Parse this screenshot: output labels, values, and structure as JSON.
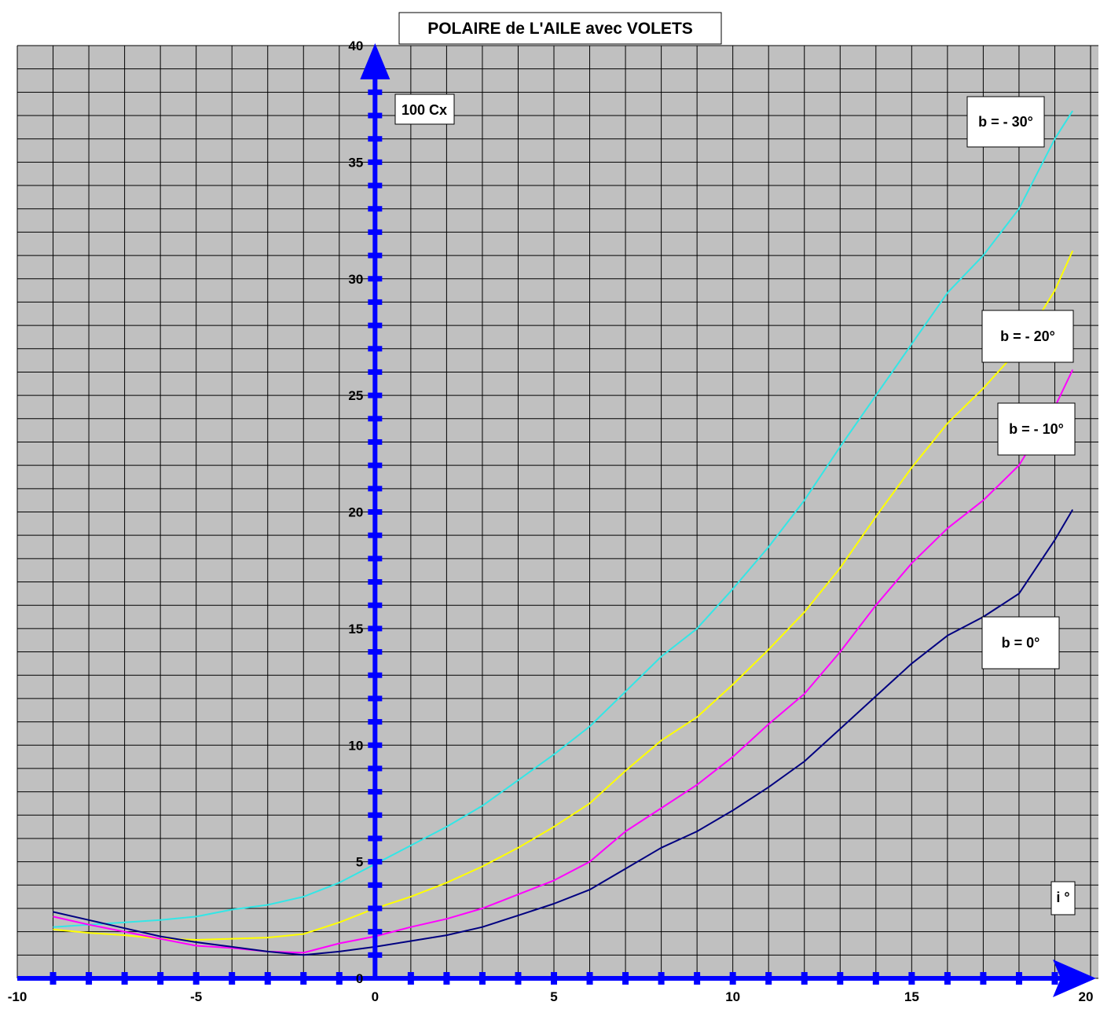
{
  "chart_data": {
    "type": "line",
    "title": "POLAIRE de L'AILE avec VOLETS",
    "ylabel": "100 Cx",
    "xlabel": "i °",
    "xlim": [
      -10,
      20
    ],
    "ylim": [
      0,
      40
    ],
    "x_ticks": [
      "-10",
      "-5",
      "0",
      "5",
      "10",
      "15",
      "20"
    ],
    "y_ticks": [
      "0",
      "5",
      "10",
      "15",
      "20",
      "25",
      "30",
      "35",
      "40"
    ],
    "grid": true,
    "background_color": "#c0c0c0",
    "axis_color": "#0000ff",
    "series": [
      {
        "name": "b = - 30°",
        "color": "#33e6e6",
        "points": [
          [
            -9,
            2.2
          ],
          [
            -8,
            2.3
          ],
          [
            -7,
            2.4
          ],
          [
            -6,
            2.5
          ],
          [
            -5,
            2.65
          ],
          [
            -4,
            2.95
          ],
          [
            -3,
            3.15
          ],
          [
            -2,
            3.5
          ],
          [
            -1,
            4.1
          ],
          [
            0,
            4.9
          ],
          [
            1,
            5.7
          ],
          [
            2,
            6.5
          ],
          [
            3,
            7.4
          ],
          [
            4,
            8.5
          ],
          [
            5,
            9.6
          ],
          [
            6,
            10.8
          ],
          [
            7,
            12.3
          ],
          [
            8,
            13.8
          ],
          [
            9,
            15.0
          ],
          [
            10,
            16.7
          ],
          [
            11,
            18.5
          ],
          [
            12,
            20.5
          ],
          [
            13,
            22.8
          ],
          [
            14,
            25.0
          ],
          [
            15,
            27.2
          ],
          [
            16,
            29.4
          ],
          [
            17,
            31.0
          ],
          [
            18,
            33.0
          ],
          [
            19,
            36.0
          ],
          [
            19.5,
            37.2
          ]
        ]
      },
      {
        "name": "b = - 20°",
        "color": "#ffff00",
        "points": [
          [
            -9,
            2.1
          ],
          [
            -8,
            1.95
          ],
          [
            -7,
            1.85
          ],
          [
            -6,
            1.7
          ],
          [
            -5,
            1.65
          ],
          [
            -4,
            1.7
          ],
          [
            -3,
            1.75
          ],
          [
            -2,
            1.9
          ],
          [
            -1,
            2.4
          ],
          [
            0,
            3.0
          ],
          [
            1,
            3.5
          ],
          [
            2,
            4.1
          ],
          [
            3,
            4.8
          ],
          [
            4,
            5.6
          ],
          [
            5,
            6.5
          ],
          [
            6,
            7.5
          ],
          [
            7,
            8.9
          ],
          [
            8,
            10.2
          ],
          [
            9,
            11.2
          ],
          [
            10,
            12.6
          ],
          [
            11,
            14.1
          ],
          [
            12,
            15.7
          ],
          [
            13,
            17.6
          ],
          [
            14,
            19.8
          ],
          [
            15,
            21.9
          ],
          [
            16,
            23.8
          ],
          [
            17,
            25.3
          ],
          [
            18,
            27.0
          ],
          [
            19,
            29.5
          ],
          [
            19.5,
            31.2
          ]
        ]
      },
      {
        "name": "b = - 10°",
        "color": "#ff00ff",
        "points": [
          [
            -9,
            2.65
          ],
          [
            -8,
            2.3
          ],
          [
            -7,
            2.0
          ],
          [
            -6,
            1.7
          ],
          [
            -5,
            1.4
          ],
          [
            -4,
            1.3
          ],
          [
            -3,
            1.15
          ],
          [
            -2,
            1.1
          ],
          [
            -1,
            1.5
          ],
          [
            0,
            1.8
          ],
          [
            1,
            2.2
          ],
          [
            2,
            2.55
          ],
          [
            3,
            3.0
          ],
          [
            4,
            3.6
          ],
          [
            5,
            4.2
          ],
          [
            6,
            5.0
          ],
          [
            7,
            6.3
          ],
          [
            8,
            7.3
          ],
          [
            9,
            8.3
          ],
          [
            10,
            9.5
          ],
          [
            11,
            10.9
          ],
          [
            12,
            12.2
          ],
          [
            13,
            14.0
          ],
          [
            14,
            16.0
          ],
          [
            15,
            17.8
          ],
          [
            16,
            19.3
          ],
          [
            17,
            20.5
          ],
          [
            18,
            22.0
          ],
          [
            19,
            24.5
          ],
          [
            19.5,
            26.1
          ]
        ]
      },
      {
        "name": "b = 0°",
        "color": "#000080",
        "points": [
          [
            -9,
            2.85
          ],
          [
            -8,
            2.5
          ],
          [
            -7,
            2.15
          ],
          [
            -6,
            1.8
          ],
          [
            -5,
            1.55
          ],
          [
            -4,
            1.35
          ],
          [
            -3,
            1.15
          ],
          [
            -2,
            1.0
          ],
          [
            -1,
            1.15
          ],
          [
            0,
            1.35
          ],
          [
            1,
            1.6
          ],
          [
            2,
            1.85
          ],
          [
            3,
            2.2
          ],
          [
            4,
            2.7
          ],
          [
            5,
            3.2
          ],
          [
            6,
            3.8
          ],
          [
            7,
            4.7
          ],
          [
            8,
            5.6
          ],
          [
            9,
            6.3
          ],
          [
            10,
            7.2
          ],
          [
            11,
            8.2
          ],
          [
            12,
            9.3
          ],
          [
            13,
            10.7
          ],
          [
            14,
            12.1
          ],
          [
            15,
            13.5
          ],
          [
            16,
            14.7
          ],
          [
            17,
            15.5
          ],
          [
            18,
            16.5
          ],
          [
            19,
            18.8
          ],
          [
            19.5,
            20.1
          ]
        ]
      }
    ]
  },
  "legend_boxes": [
    {
      "label": "b = - 30°"
    },
    {
      "label": "b = - 20°"
    },
    {
      "label": "b = - 10°"
    },
    {
      "label": "b = 0°"
    }
  ]
}
